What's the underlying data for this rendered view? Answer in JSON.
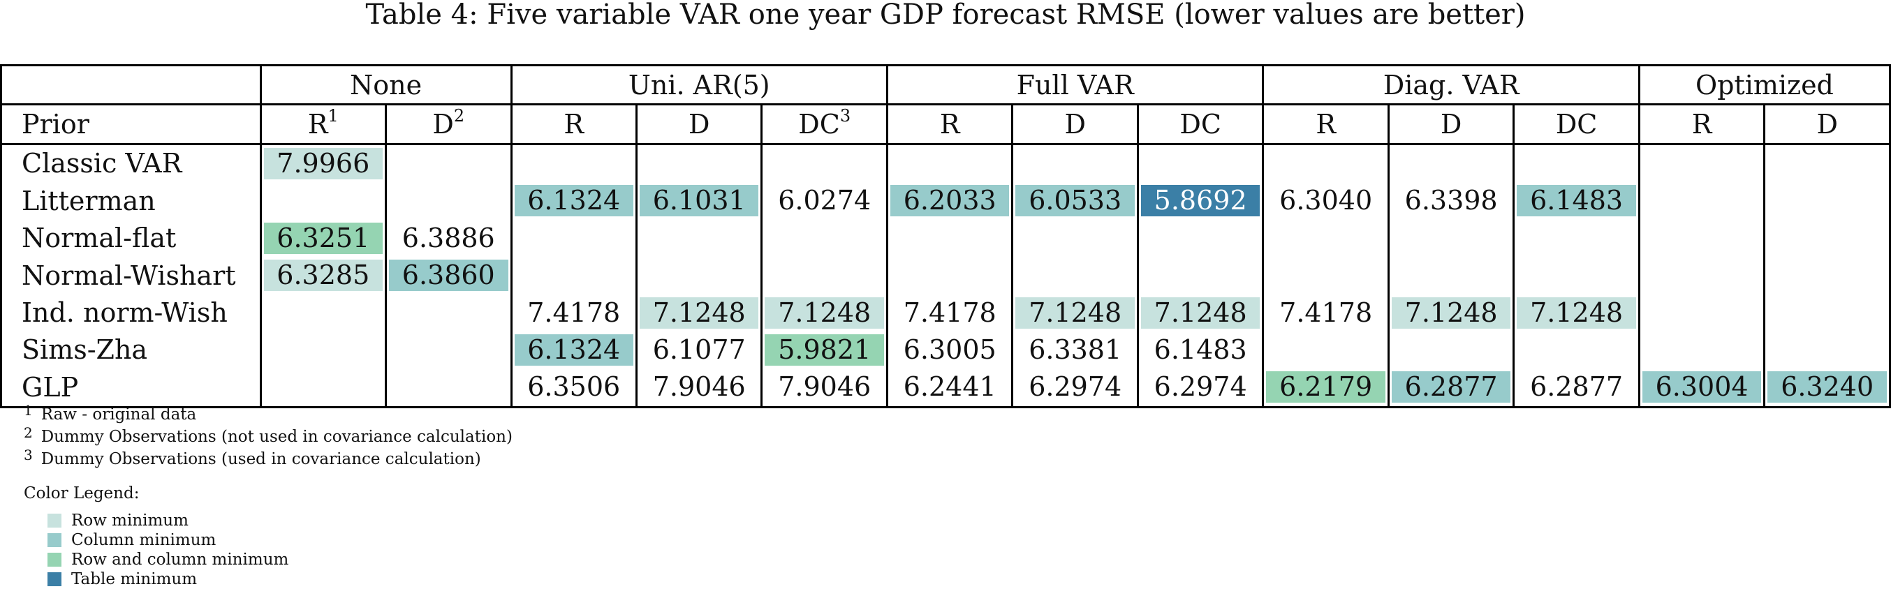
{
  "caption": "Table 4: Five variable VAR one year GDP forecast RMSE (lower values are better)",
  "colors": {
    "row_min": "#c7e2de",
    "col_min": "#97cbcb",
    "row_col_min": "#95d4b2",
    "table_min": "#3b7fa6"
  },
  "groups": [
    {
      "label": "",
      "span": 1
    },
    {
      "label": "None",
      "span": 2
    },
    {
      "label": "Uni. AR(5)",
      "span": 3
    },
    {
      "label": "Full VAR",
      "span": 3
    },
    {
      "label": "Diag. VAR",
      "span": 3
    },
    {
      "label": "Optimized",
      "span": 2
    }
  ],
  "subheaders": [
    {
      "text": "Prior",
      "sup": ""
    },
    {
      "text": "R",
      "sup": "1"
    },
    {
      "text": "D",
      "sup": "2"
    },
    {
      "text": "R",
      "sup": ""
    },
    {
      "text": "D",
      "sup": ""
    },
    {
      "text": "DC",
      "sup": "3"
    },
    {
      "text": "R",
      "sup": ""
    },
    {
      "text": "D",
      "sup": ""
    },
    {
      "text": "DC",
      "sup": ""
    },
    {
      "text": "R",
      "sup": ""
    },
    {
      "text": "D",
      "sup": ""
    },
    {
      "text": "DC",
      "sup": ""
    },
    {
      "text": "R",
      "sup": ""
    },
    {
      "text": "D",
      "sup": ""
    }
  ],
  "rows": [
    {
      "label": "Classic VAR",
      "cells": [
        {
          "v": "7.9966",
          "h": "row"
        },
        {
          "v": "",
          "h": ""
        },
        {
          "v": "",
          "h": ""
        },
        {
          "v": "",
          "h": ""
        },
        {
          "v": "",
          "h": ""
        },
        {
          "v": "",
          "h": ""
        },
        {
          "v": "",
          "h": ""
        },
        {
          "v": "",
          "h": ""
        },
        {
          "v": "",
          "h": ""
        },
        {
          "v": "",
          "h": ""
        },
        {
          "v": "",
          "h": ""
        },
        {
          "v": "",
          "h": ""
        },
        {
          "v": "",
          "h": ""
        }
      ]
    },
    {
      "label": "Litterman",
      "cells": [
        {
          "v": "",
          "h": ""
        },
        {
          "v": "",
          "h": ""
        },
        {
          "v": "6.1324",
          "h": "col"
        },
        {
          "v": "6.1031",
          "h": "col"
        },
        {
          "v": "6.0274",
          "h": ""
        },
        {
          "v": "6.2033",
          "h": "col"
        },
        {
          "v": "6.0533",
          "h": "col"
        },
        {
          "v": "5.8692",
          "h": "min"
        },
        {
          "v": "6.3040",
          "h": ""
        },
        {
          "v": "6.3398",
          "h": ""
        },
        {
          "v": "6.1483",
          "h": "col"
        },
        {
          "v": "",
          "h": ""
        },
        {
          "v": "",
          "h": ""
        }
      ]
    },
    {
      "label": "Normal-flat",
      "cells": [
        {
          "v": "6.3251",
          "h": "both"
        },
        {
          "v": "6.3886",
          "h": ""
        },
        {
          "v": "",
          "h": ""
        },
        {
          "v": "",
          "h": ""
        },
        {
          "v": "",
          "h": ""
        },
        {
          "v": "",
          "h": ""
        },
        {
          "v": "",
          "h": ""
        },
        {
          "v": "",
          "h": ""
        },
        {
          "v": "",
          "h": ""
        },
        {
          "v": "",
          "h": ""
        },
        {
          "v": "",
          "h": ""
        },
        {
          "v": "",
          "h": ""
        },
        {
          "v": "",
          "h": ""
        }
      ]
    },
    {
      "label": "Normal-Wishart",
      "cells": [
        {
          "v": "6.3285",
          "h": "row"
        },
        {
          "v": "6.3860",
          "h": "col"
        },
        {
          "v": "",
          "h": ""
        },
        {
          "v": "",
          "h": ""
        },
        {
          "v": "",
          "h": ""
        },
        {
          "v": "",
          "h": ""
        },
        {
          "v": "",
          "h": ""
        },
        {
          "v": "",
          "h": ""
        },
        {
          "v": "",
          "h": ""
        },
        {
          "v": "",
          "h": ""
        },
        {
          "v": "",
          "h": ""
        },
        {
          "v": "",
          "h": ""
        },
        {
          "v": "",
          "h": ""
        }
      ]
    },
    {
      "label": "Ind. norm-Wish",
      "cells": [
        {
          "v": "",
          "h": ""
        },
        {
          "v": "",
          "h": ""
        },
        {
          "v": "7.4178",
          "h": ""
        },
        {
          "v": "7.1248",
          "h": "row"
        },
        {
          "v": "7.1248",
          "h": "row"
        },
        {
          "v": "7.4178",
          "h": ""
        },
        {
          "v": "7.1248",
          "h": "row"
        },
        {
          "v": "7.1248",
          "h": "row"
        },
        {
          "v": "7.4178",
          "h": ""
        },
        {
          "v": "7.1248",
          "h": "row"
        },
        {
          "v": "7.1248",
          "h": "row"
        },
        {
          "v": "",
          "h": ""
        },
        {
          "v": "",
          "h": ""
        }
      ]
    },
    {
      "label": "Sims-Zha",
      "cells": [
        {
          "v": "",
          "h": ""
        },
        {
          "v": "",
          "h": ""
        },
        {
          "v": "6.1324",
          "h": "col"
        },
        {
          "v": "6.1077",
          "h": ""
        },
        {
          "v": "5.9821",
          "h": "both"
        },
        {
          "v": "6.3005",
          "h": ""
        },
        {
          "v": "6.3381",
          "h": ""
        },
        {
          "v": "6.1483",
          "h": ""
        },
        {
          "v": "",
          "h": ""
        },
        {
          "v": "",
          "h": ""
        },
        {
          "v": "",
          "h": ""
        },
        {
          "v": "",
          "h": ""
        },
        {
          "v": "",
          "h": ""
        }
      ]
    },
    {
      "label": "GLP",
      "cells": [
        {
          "v": "",
          "h": ""
        },
        {
          "v": "",
          "h": ""
        },
        {
          "v": "6.3506",
          "h": ""
        },
        {
          "v": "7.9046",
          "h": ""
        },
        {
          "v": "7.9046",
          "h": ""
        },
        {
          "v": "6.2441",
          "h": ""
        },
        {
          "v": "6.2974",
          "h": ""
        },
        {
          "v": "6.2974",
          "h": ""
        },
        {
          "v": "6.2179",
          "h": "both"
        },
        {
          "v": "6.2877",
          "h": "col"
        },
        {
          "v": "6.2877",
          "h": ""
        },
        {
          "v": "6.3004",
          "h": "col"
        },
        {
          "v": "6.3240",
          "h": "col"
        }
      ]
    }
  ],
  "footnotes": [
    {
      "mark": "1",
      "text": "Raw - original data"
    },
    {
      "mark": "2",
      "text": "Dummy Observations (not used in covariance calculation)"
    },
    {
      "mark": "3",
      "text": "Dummy Observations (used in covariance calculation)"
    }
  ],
  "legend": {
    "title": "Color Legend:",
    "items": [
      {
        "label": "Row minimum",
        "color": "#c7e2de"
      },
      {
        "label": "Column minimum",
        "color": "#97cbcb"
      },
      {
        "label": "Row and column minimum",
        "color": "#95d4b2"
      },
      {
        "label": "Table minimum",
        "color": "#3b7fa6"
      }
    ]
  }
}
